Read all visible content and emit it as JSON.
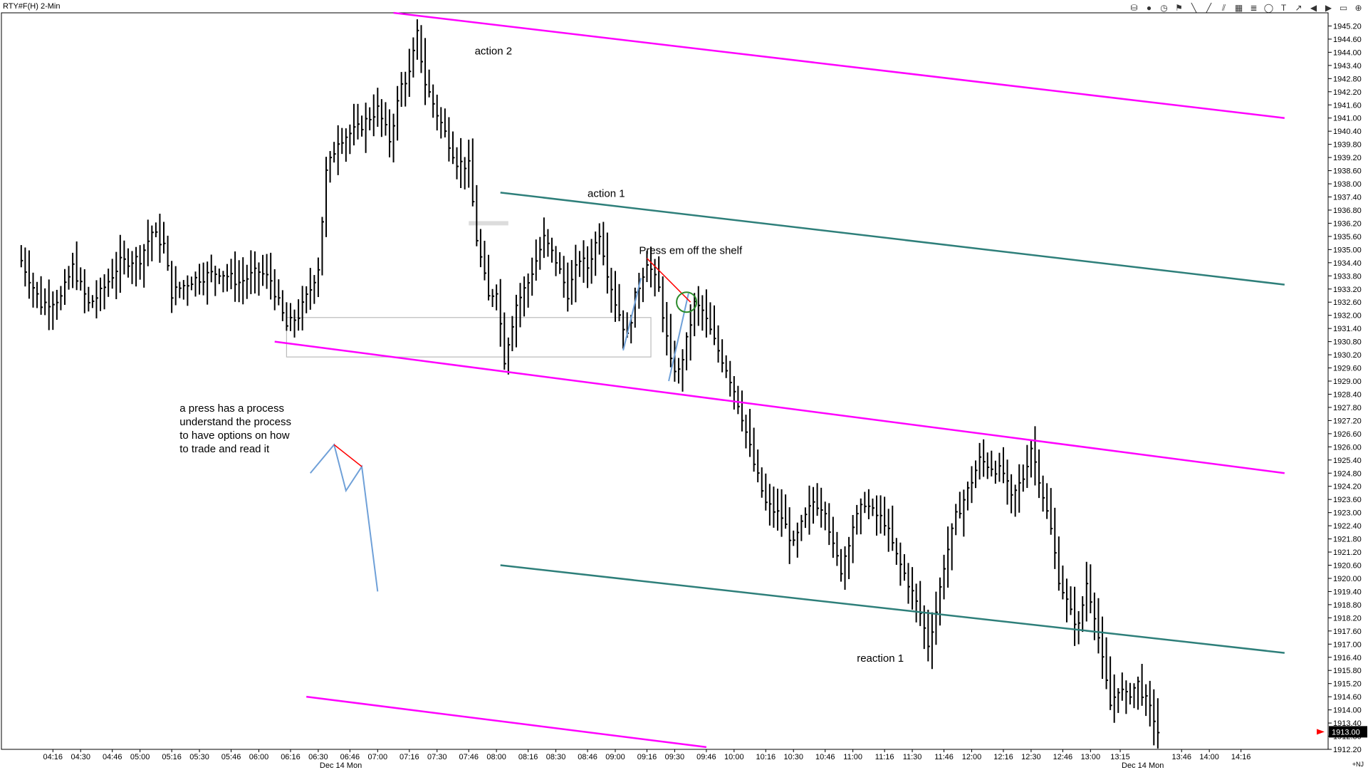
{
  "window": {
    "title": "RTY#F(H) 2-Min",
    "corner_label": "+NJ",
    "toolbar": [
      {
        "name": "data-source-icon",
        "glyph": "⛁"
      },
      {
        "name": "record-icon",
        "glyph": "●"
      },
      {
        "name": "clock-icon",
        "glyph": "◷"
      },
      {
        "name": "flag-icon",
        "glyph": "⚑"
      },
      {
        "name": "draw-line-icon",
        "glyph": "╲"
      },
      {
        "name": "ray-line-icon",
        "glyph": "╱"
      },
      {
        "name": "channel-icon",
        "glyph": "⫽"
      },
      {
        "name": "grid-tool-icon",
        "glyph": "▦"
      },
      {
        "name": "fibonacci-icon",
        "glyph": "≣"
      },
      {
        "name": "circle-tool-icon",
        "glyph": "◯"
      },
      {
        "name": "text-tool-icon",
        "glyph": "T"
      },
      {
        "name": "arrow-tool-icon",
        "glyph": "↗"
      },
      {
        "name": "scroll-left-icon",
        "glyph": "◀"
      },
      {
        "name": "scroll-right-icon",
        "glyph": "▶"
      },
      {
        "name": "page-icon",
        "glyph": "▭"
      },
      {
        "name": "zoom-icon",
        "glyph": "⊕"
      }
    ]
  },
  "colors": {
    "price_bar": "#000000",
    "magenta_channel": "#ff00ff",
    "teal_channel": "#2e7f7a",
    "red_stroke": "#ff0000",
    "blue_stroke": "#6fa0d8",
    "green_circle": "#2a8a2a",
    "shelf_box": "#bbbbbb",
    "last_price_bg": "#000000",
    "last_price_arrow": "#ff0000"
  },
  "chart_data": {
    "type": "bar",
    "title": "",
    "y_axis": {
      "min": 1912.2,
      "max": 1945.8,
      "ticks": [
        "1945.20",
        "1944.60",
        "1944.00",
        "1943.40",
        "1942.80",
        "1942.20",
        "1941.60",
        "1941.00",
        "1940.40",
        "1939.80",
        "1939.20",
        "1938.60",
        "1938.00",
        "1937.40",
        "1936.80",
        "1936.20",
        "1935.60",
        "1935.00",
        "1934.40",
        "1933.80",
        "1933.20",
        "1932.60",
        "1932.00",
        "1931.40",
        "1930.80",
        "1930.20",
        "1929.60",
        "1929.00",
        "1928.40",
        "1927.80",
        "1927.20",
        "1926.60",
        "1926.00",
        "1925.40",
        "1924.80",
        "1924.20",
        "1923.60",
        "1923.00",
        "1922.40",
        "1921.80",
        "1921.20",
        "1920.60",
        "1920.00",
        "1919.40",
        "1918.80",
        "1918.20",
        "1917.60",
        "1917.00",
        "1916.40",
        "1915.80",
        "1915.20",
        "1914.60",
        "1914.00",
        "1913.40",
        "1912.80",
        "1912.20"
      ]
    },
    "x_axis": {
      "ticks": [
        "04:16",
        "04:30",
        "04:46",
        "05:00",
        "05:16",
        "05:30",
        "05:46",
        "06:00",
        "06:16",
        "06:30",
        "06:46",
        "07:00",
        "07:16",
        "07:30",
        "07:46",
        "08:00",
        "08:16",
        "08:30",
        "08:46",
        "09:00",
        "09:16",
        "09:30",
        "09:46",
        "10:00",
        "10:16",
        "10:30",
        "10:46",
        "11:00",
        "11:16",
        "11:30",
        "11:46",
        "12:00",
        "12:16",
        "12:30",
        "12:46",
        "13:00",
        "13:15",
        "13:46",
        "14:00",
        "14:16"
      ],
      "date_labels": [
        {
          "text": "Dec 14 Mon",
          "at": "06:30"
        },
        {
          "text": "Dec 14 Mon",
          "at": "13:15"
        }
      ]
    },
    "last_price": "1913.00",
    "series": [
      {
        "keyframes": [
          [
            "04:00",
            1934.5
          ],
          [
            "04:10",
            1932.5
          ],
          [
            "04:20",
            1932.8
          ],
          [
            "04:26",
            1934.2
          ],
          [
            "04:34",
            1932.5
          ],
          [
            "04:40",
            1933.0
          ],
          [
            "04:50",
            1934.4
          ],
          [
            "05:00",
            1934.6
          ],
          [
            "05:06",
            1935.8
          ],
          [
            "05:12",
            1935.2
          ],
          [
            "05:16",
            1933.0
          ],
          [
            "05:26",
            1933.6
          ],
          [
            "05:40",
            1934.0
          ],
          [
            "05:50",
            1933.5
          ],
          [
            "06:00",
            1934.0
          ],
          [
            "06:06",
            1933.6
          ],
          [
            "06:14",
            1931.5
          ],
          [
            "06:20",
            1932.0
          ],
          [
            "06:26",
            1933.2
          ],
          [
            "06:30",
            1934.2
          ],
          [
            "06:34",
            1938.5
          ],
          [
            "06:40",
            1940.0
          ],
          [
            "06:50",
            1940.5
          ],
          [
            "07:00",
            1941.4
          ],
          [
            "07:06",
            1940.0
          ],
          [
            "07:12",
            1942.5
          ],
          [
            "07:16",
            1943.0
          ],
          [
            "07:20",
            1944.8
          ],
          [
            "07:24",
            1942.6
          ],
          [
            "07:30",
            1941.2
          ],
          [
            "07:40",
            1939.0
          ],
          [
            "07:46",
            1938.8
          ],
          [
            "07:50",
            1935.5
          ],
          [
            "07:56",
            1932.8
          ],
          [
            "08:00",
            1933.2
          ],
          [
            "08:04",
            1930.0
          ],
          [
            "08:10",
            1932.5
          ],
          [
            "08:16",
            1933.5
          ],
          [
            "08:24",
            1935.5
          ],
          [
            "08:30",
            1934.5
          ],
          [
            "08:36",
            1933.0
          ],
          [
            "08:42",
            1934.6
          ],
          [
            "08:46",
            1934.2
          ],
          [
            "08:52",
            1935.8
          ],
          [
            "08:56",
            1934.0
          ],
          [
            "09:00",
            1932.6
          ],
          [
            "09:06",
            1931.0
          ],
          [
            "09:10",
            1932.8
          ],
          [
            "09:16",
            1934.5
          ],
          [
            "09:22",
            1933.2
          ],
          [
            "09:28",
            1929.8
          ],
          [
            "09:32",
            1929.4
          ],
          [
            "09:36",
            1930.8
          ],
          [
            "09:40",
            1932.5
          ],
          [
            "09:44",
            1932.2
          ],
          [
            "09:50",
            1930.8
          ],
          [
            "09:56",
            1929.6
          ],
          [
            "10:00",
            1928.6
          ],
          [
            "10:04",
            1927.4
          ],
          [
            "10:10",
            1925.2
          ],
          [
            "10:16",
            1923.4
          ],
          [
            "10:24",
            1922.8
          ],
          [
            "10:30",
            1921.5
          ],
          [
            "10:34",
            1922.4
          ],
          [
            "10:40",
            1923.5
          ],
          [
            "10:46",
            1923.2
          ],
          [
            "10:50",
            1921.4
          ],
          [
            "10:54",
            1920.4
          ],
          [
            "11:00",
            1922.4
          ],
          [
            "11:06",
            1923.5
          ],
          [
            "11:10",
            1923.0
          ],
          [
            "11:16",
            1922.6
          ],
          [
            "11:22",
            1921.0
          ],
          [
            "11:28",
            1919.8
          ],
          [
            "11:34",
            1918.4
          ],
          [
            "11:38",
            1917.0
          ],
          [
            "11:42",
            1918.5
          ],
          [
            "11:46",
            1920.6
          ],
          [
            "11:52",
            1922.8
          ],
          [
            "11:58",
            1924.0
          ],
          [
            "12:04",
            1925.4
          ],
          [
            "12:12",
            1925.0
          ],
          [
            "12:16",
            1924.8
          ],
          [
            "12:20",
            1923.6
          ],
          [
            "12:26",
            1924.6
          ],
          [
            "12:30",
            1926.0
          ],
          [
            "12:34",
            1924.6
          ],
          [
            "12:40",
            1922.2
          ],
          [
            "12:44",
            1920.0
          ],
          [
            "12:50",
            1918.4
          ],
          [
            "12:54",
            1917.8
          ],
          [
            "12:58",
            1919.8
          ],
          [
            "13:02",
            1918.4
          ],
          [
            "13:06",
            1916.2
          ],
          [
            "13:10",
            1914.2
          ],
          [
            "13:14",
            1915.0
          ],
          [
            "13:18",
            1914.6
          ],
          [
            "13:24",
            1915.2
          ],
          [
            "13:28",
            1914.4
          ],
          [
            "13:32",
            1913.6
          ],
          [
            "13:34",
            1913.0
          ]
        ]
      }
    ],
    "trendlines": [
      {
        "name": "magenta-channel-top",
        "color": "magenta",
        "from": [
          "07:08",
          1945.8
        ],
        "to": [
          "14:38",
          1941.0
        ]
      },
      {
        "name": "magenta-channel-middle",
        "color": "magenta",
        "from": [
          "06:08",
          1930.8
        ],
        "to": [
          "14:38",
          1924.8
        ]
      },
      {
        "name": "magenta-channel-bottom",
        "color": "magenta",
        "from": [
          "06:24",
          1914.6
        ],
        "to": [
          "09:46",
          1912.3
        ]
      },
      {
        "name": "teal-channel-top",
        "color": "teal",
        "from": [
          "08:02",
          1937.6
        ],
        "to": [
          "14:38",
          1933.4
        ]
      },
      {
        "name": "teal-channel-bottom",
        "color": "teal",
        "from": [
          "08:02",
          1920.6
        ],
        "to": [
          "14:38",
          1916.6
        ]
      }
    ],
    "annotations": [
      {
        "name": "label-action-2",
        "text": "action 2",
        "at": [
          "07:49",
          1943.9
        ]
      },
      {
        "name": "label-action-1",
        "text": "action 1",
        "at": [
          "08:46",
          1937.4
        ]
      },
      {
        "name": "label-press-em-off-the-shelf",
        "text": "Press em off the shelf",
        "at": [
          "09:12",
          1934.8
        ]
      },
      {
        "name": "label-reaction-1",
        "text": "reaction 1",
        "at": [
          "11:02",
          1916.2
        ]
      }
    ],
    "note": {
      "lines": [
        "a press has a process",
        "understand the process",
        "to have options on how",
        "to trade and read it"
      ],
      "at": [
        "05:20",
        1927.6
      ]
    }
  }
}
